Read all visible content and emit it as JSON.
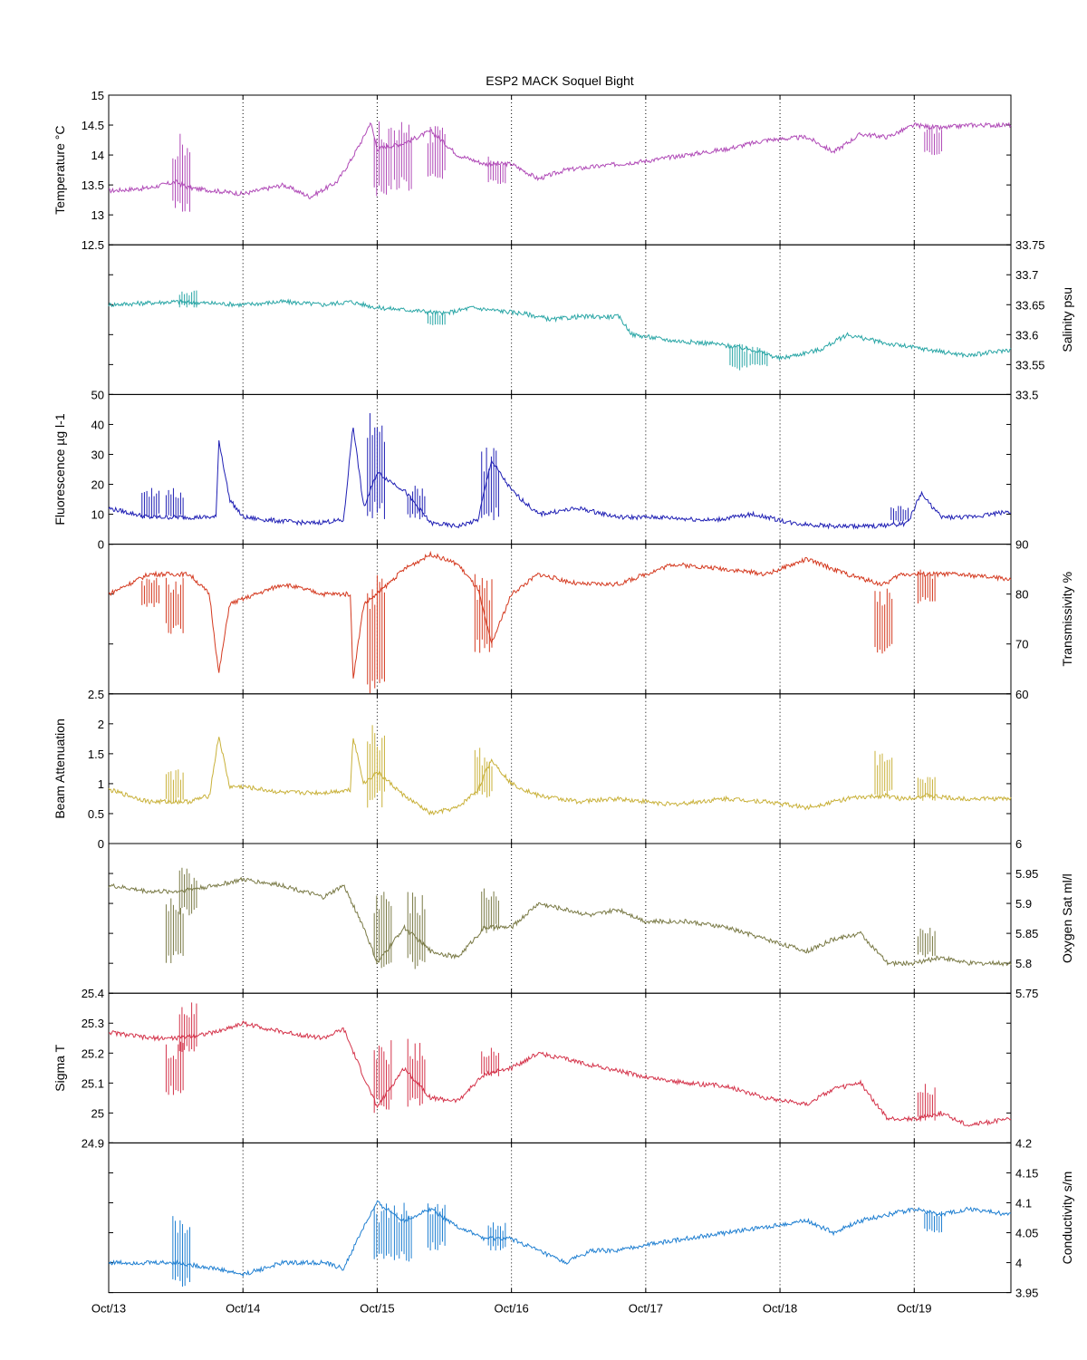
{
  "chart_data": {
    "type": "line",
    "title": "ESP2 MACK  Soquel Bight",
    "x_tick_labels": [
      "Oct/13",
      "Oct/14",
      "Oct/15",
      "Oct/16",
      "Oct/17",
      "Oct/18",
      "Oct/19"
    ],
    "xlim_days": [
      0,
      6.72
    ],
    "grid": "vertical dotted at day ticks",
    "panels": [
      {
        "name": "Temperature °C",
        "ylabel": "Temperature °C",
        "axis_side": "left",
        "color": "#b04ab7",
        "ylim": [
          12.5,
          15
        ],
        "yticks": [
          "12.5",
          "13",
          "13.5",
          "14",
          "14.5",
          "15"
        ],
        "tick_values": [
          12.5,
          13,
          13.5,
          14,
          14.5,
          15
        ],
        "x": [
          0,
          0.3,
          0.5,
          0.6,
          0.8,
          1.0,
          1.3,
          1.5,
          1.7,
          1.8,
          1.9,
          1.95,
          2.0,
          2.2,
          2.4,
          2.6,
          2.8,
          3.0,
          3.2,
          3.4,
          3.6,
          3.8,
          4.0,
          4.3,
          4.6,
          4.9,
          5.2,
          5.4,
          5.6,
          5.8,
          6.0,
          6.2,
          6.4,
          6.72
        ],
        "y": [
          13.4,
          13.45,
          13.55,
          13.45,
          13.4,
          13.35,
          13.5,
          13.3,
          13.55,
          13.9,
          14.3,
          14.55,
          14.1,
          14.2,
          14.4,
          14.0,
          13.85,
          13.85,
          13.6,
          13.75,
          13.8,
          13.85,
          13.9,
          14.0,
          14.1,
          14.25,
          14.3,
          14.05,
          14.35,
          14.3,
          14.5,
          14.45,
          14.5,
          14.5
        ],
        "spikes": [
          [
            0.55,
            13.0,
            14.4
          ],
          [
            2.05,
            13.3,
            14.6
          ],
          [
            2.2,
            13.4,
            14.6
          ],
          [
            2.45,
            13.6,
            14.5
          ],
          [
            2.9,
            13.5,
            14.0
          ],
          [
            6.15,
            14.0,
            14.5
          ]
        ]
      },
      {
        "name": "Salinity psu",
        "ylabel": "Salinity psu",
        "axis_side": "right",
        "color": "#2aa6a6",
        "ylim": [
          33.5,
          33.75
        ],
        "yticks": [
          "33.5",
          "33.55",
          "33.6",
          "33.65",
          "33.7",
          "33.75"
        ],
        "tick_values": [
          33.5,
          33.55,
          33.6,
          33.65,
          33.7,
          33.75
        ],
        "x": [
          0,
          0.5,
          1.0,
          1.3,
          1.6,
          1.8,
          2.0,
          2.3,
          2.5,
          2.7,
          2.9,
          3.1,
          3.3,
          3.5,
          3.8,
          3.9,
          4.2,
          4.5,
          4.8,
          5.0,
          5.3,
          5.5,
          5.8,
          6.1,
          6.4,
          6.72
        ],
        "y": [
          33.65,
          33.655,
          33.65,
          33.655,
          33.65,
          33.655,
          33.645,
          33.64,
          33.635,
          33.645,
          33.64,
          33.635,
          33.625,
          33.63,
          33.63,
          33.6,
          33.59,
          33.585,
          33.575,
          33.56,
          33.575,
          33.6,
          33.585,
          33.575,
          33.565,
          33.575
        ],
        "spikes": [
          [
            0.6,
            33.645,
            33.675
          ],
          [
            2.45,
            33.615,
            33.64
          ],
          [
            4.7,
            33.54,
            33.585
          ],
          [
            4.85,
            33.545,
            33.58
          ]
        ]
      },
      {
        "name": "Fluorescence µg l-1",
        "ylabel": "Fluorescence µg l-1",
        "axis_side": "left",
        "color": "#1f1fb4",
        "ylim": [
          0,
          50
        ],
        "yticks": [
          "0",
          "10",
          "20",
          "30",
          "40",
          "50"
        ],
        "tick_values": [
          0,
          10,
          20,
          30,
          40,
          50
        ],
        "x": [
          0,
          0.3,
          0.6,
          0.8,
          0.82,
          0.9,
          1.0,
          1.2,
          1.5,
          1.75,
          1.82,
          1.9,
          2.0,
          2.2,
          2.4,
          2.6,
          2.75,
          2.85,
          3.0,
          3.2,
          3.5,
          3.8,
          4.1,
          4.5,
          4.8,
          5.1,
          5.4,
          5.7,
          5.95,
          6.05,
          6.2,
          6.4,
          6.72
        ],
        "y": [
          12,
          9,
          9,
          9,
          35,
          15,
          9,
          8,
          7,
          8,
          40,
          12,
          24,
          18,
          7,
          6,
          8,
          28,
          18,
          10,
          12,
          9,
          9,
          8,
          10,
          7,
          6,
          6,
          7,
          17,
          9,
          9,
          11
        ],
        "spikes": [
          [
            0.32,
            8,
            20
          ],
          [
            0.5,
            8,
            19
          ],
          [
            2.0,
            8,
            46
          ],
          [
            2.3,
            8,
            20
          ],
          [
            2.85,
            8,
            33
          ],
          [
            5.9,
            7,
            13
          ]
        ]
      },
      {
        "name": "Transmissivity %",
        "ylabel": "Transmissivity %",
        "axis_side": "right",
        "color": "#d4391f",
        "ylim": [
          60,
          90
        ],
        "yticks": [
          "60",
          "70",
          "80",
          "90"
        ],
        "tick_values": [
          60,
          70,
          80,
          90
        ],
        "x": [
          0,
          0.3,
          0.6,
          0.75,
          0.82,
          0.9,
          1.0,
          1.3,
          1.6,
          1.8,
          1.82,
          1.9,
          2.0,
          2.2,
          2.4,
          2.6,
          2.75,
          2.85,
          3.0,
          3.2,
          3.5,
          3.8,
          4.2,
          4.6,
          4.9,
          5.2,
          5.5,
          5.75,
          5.78,
          5.9,
          6.1,
          6.3,
          6.72
        ],
        "y": [
          80,
          84,
          84,
          80,
          64,
          78,
          79,
          82,
          80,
          80,
          63,
          78,
          80,
          85,
          88,
          86,
          81,
          70,
          80,
          84,
          82,
          82,
          86,
          85,
          84,
          87,
          84,
          82,
          82,
          84,
          84,
          84,
          83
        ],
        "spikes": [
          [
            0.32,
            77,
            84
          ],
          [
            0.5,
            72,
            84
          ],
          [
            2.0,
            60,
            84
          ],
          [
            2.8,
            68,
            84
          ],
          [
            5.78,
            68,
            82
          ],
          [
            6.1,
            78,
            85
          ]
        ]
      },
      {
        "name": "Beam Attenuation",
        "ylabel": "Beam Attenuation",
        "axis_side": "left",
        "color": "#c9b13a",
        "ylim": [
          0,
          2.5
        ],
        "yticks": [
          "0",
          "0.5",
          "1",
          "1.5",
          "2",
          "2.5"
        ],
        "tick_values": [
          0,
          0.5,
          1,
          1.5,
          2,
          2.5
        ],
        "x": [
          0,
          0.3,
          0.6,
          0.75,
          0.82,
          0.9,
          1.0,
          1.3,
          1.6,
          1.8,
          1.82,
          1.9,
          2.0,
          2.2,
          2.4,
          2.6,
          2.75,
          2.85,
          3.0,
          3.2,
          3.5,
          3.8,
          4.2,
          4.6,
          4.9,
          5.2,
          5.5,
          5.78,
          5.9,
          6.1,
          6.3,
          6.72
        ],
        "y": [
          0.9,
          0.7,
          0.7,
          0.8,
          1.8,
          0.95,
          0.95,
          0.85,
          0.85,
          0.9,
          1.8,
          1.0,
          1.2,
          0.8,
          0.5,
          0.6,
          0.9,
          1.4,
          1.0,
          0.8,
          0.7,
          0.75,
          0.65,
          0.75,
          0.7,
          0.6,
          0.75,
          0.8,
          0.75,
          0.8,
          0.75,
          0.75
        ],
        "spikes": [
          [
            0.5,
            0.65,
            1.25
          ],
          [
            2.0,
            0.6,
            2.05
          ],
          [
            2.8,
            0.7,
            1.6
          ],
          [
            5.78,
            0.75,
            1.55
          ],
          [
            6.1,
            0.7,
            1.15
          ]
        ]
      },
      {
        "name": "Oxygen Sat ml/l",
        "ylabel": "Oxygen Sat ml/l",
        "axis_side": "right",
        "color": "#7a7a46",
        "ylim": [
          5.75,
          6
        ],
        "yticks": [
          "5.75",
          "5.8",
          "5.85",
          "5.9",
          "5.95",
          "6"
        ],
        "tick_values": [
          5.75,
          5.8,
          5.85,
          5.9,
          5.95,
          6
        ],
        "x": [
          0,
          0.3,
          0.5,
          0.8,
          1.0,
          1.3,
          1.6,
          1.75,
          1.9,
          2.0,
          2.2,
          2.4,
          2.6,
          2.8,
          3.0,
          3.2,
          3.4,
          3.6,
          3.8,
          4.0,
          4.3,
          4.6,
          4.9,
          5.2,
          5.4,
          5.6,
          5.8,
          6.0,
          6.2,
          6.4,
          6.72
        ],
        "y": [
          5.93,
          5.92,
          5.92,
          5.93,
          5.94,
          5.93,
          5.91,
          5.93,
          5.86,
          5.8,
          5.86,
          5.82,
          5.81,
          5.86,
          5.86,
          5.9,
          5.89,
          5.88,
          5.89,
          5.87,
          5.87,
          5.86,
          5.84,
          5.82,
          5.84,
          5.85,
          5.8,
          5.8,
          5.81,
          5.8,
          5.8
        ],
        "spikes": [
          [
            0.5,
            5.8,
            5.91
          ],
          [
            0.6,
            5.88,
            5.96
          ],
          [
            2.05,
            5.79,
            5.92
          ],
          [
            2.3,
            5.79,
            5.92
          ],
          [
            2.85,
            5.85,
            5.93
          ],
          [
            6.1,
            5.81,
            5.86
          ]
        ]
      },
      {
        "name": "Sigma T",
        "ylabel": "Sigma T",
        "axis_side": "left",
        "color": "#d4334a",
        "ylim": [
          24.9,
          25.4
        ],
        "yticks": [
          "24.9",
          "25",
          "25.1",
          "25.2",
          "25.3",
          "25.4"
        ],
        "tick_values": [
          24.9,
          25.0,
          25.1,
          25.2,
          25.3,
          25.4
        ],
        "x": [
          0,
          0.3,
          0.5,
          0.8,
          1.0,
          1.3,
          1.6,
          1.75,
          1.9,
          2.0,
          2.2,
          2.4,
          2.6,
          2.8,
          3.0,
          3.2,
          3.4,
          3.6,
          3.8,
          4.0,
          4.3,
          4.6,
          4.9,
          5.2,
          5.4,
          5.6,
          5.8,
          6.0,
          6.2,
          6.4,
          6.72
        ],
        "y": [
          25.27,
          25.25,
          25.25,
          25.27,
          25.3,
          25.27,
          25.25,
          25.28,
          25.12,
          25.02,
          25.15,
          25.05,
          25.04,
          25.13,
          25.15,
          25.2,
          25.18,
          25.16,
          25.14,
          25.12,
          25.1,
          25.09,
          25.05,
          25.03,
          25.08,
          25.1,
          24.98,
          24.98,
          25.0,
          24.96,
          24.98
        ],
        "spikes": [
          [
            0.5,
            25.06,
            25.24
          ],
          [
            0.6,
            25.2,
            25.37
          ],
          [
            2.05,
            25.0,
            25.25
          ],
          [
            2.3,
            25.02,
            25.25
          ],
          [
            2.85,
            25.12,
            25.22
          ],
          [
            6.1,
            24.97,
            25.1
          ]
        ]
      },
      {
        "name": "Conductivity s/m",
        "ylabel": "Conductivity s/m",
        "axis_side": "right",
        "color": "#1f7fd1",
        "ylim": [
          3.95,
          4.2
        ],
        "yticks": [
          "3.95",
          "4",
          "4.05",
          "4.1",
          "4.15",
          "4.2"
        ],
        "tick_values": [
          3.95,
          4.0,
          4.05,
          4.1,
          4.15,
          4.2
        ],
        "x": [
          0,
          0.3,
          0.5,
          0.8,
          1.0,
          1.3,
          1.6,
          1.75,
          1.9,
          2.0,
          2.2,
          2.4,
          2.6,
          2.8,
          3.0,
          3.2,
          3.4,
          3.6,
          3.8,
          4.0,
          4.3,
          4.6,
          4.9,
          5.2,
          5.4,
          5.6,
          5.8,
          6.0,
          6.2,
          6.4,
          6.72
        ],
        "y": [
          4.0,
          4.0,
          4.0,
          3.99,
          3.98,
          4.0,
          4.0,
          3.99,
          4.06,
          4.1,
          4.07,
          4.09,
          4.06,
          4.04,
          4.04,
          4.02,
          4.0,
          4.02,
          4.02,
          4.03,
          4.04,
          4.05,
          4.06,
          4.07,
          4.05,
          4.07,
          4.08,
          4.09,
          4.08,
          4.09,
          4.08
        ],
        "spikes": [
          [
            0.55,
            3.96,
            4.08
          ],
          [
            2.05,
            4.0,
            4.1
          ],
          [
            2.2,
            4.0,
            4.1
          ],
          [
            2.45,
            4.02,
            4.1
          ],
          [
            2.9,
            4.02,
            4.07
          ],
          [
            6.15,
            4.05,
            4.09
          ]
        ]
      }
    ]
  }
}
